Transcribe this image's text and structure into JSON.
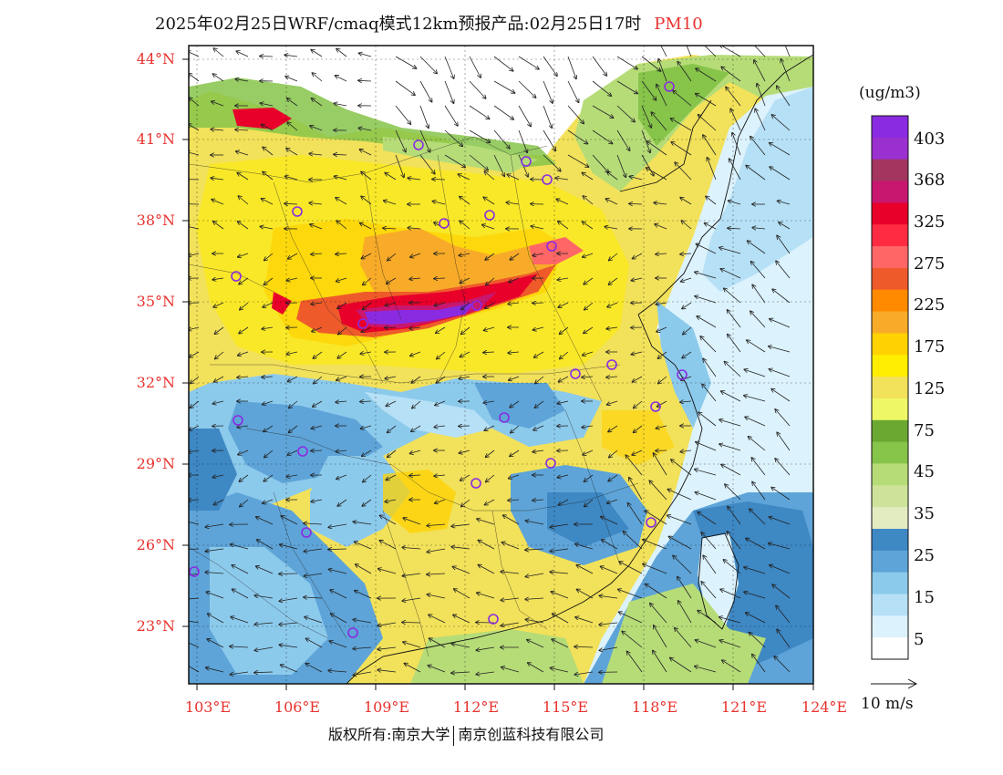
{
  "title": {
    "text": "2025年02月25日WRF/cmaq模式12km预报产品:02月25日17时",
    "variable": "PM10"
  },
  "axes": {
    "y_ticks": [
      "44°N",
      "41°N",
      "38°N",
      "35°N",
      "32°N",
      "29°N",
      "26°N",
      "23°N"
    ],
    "x_ticks": [
      "103°E",
      "106°E",
      "109°E",
      "112°E",
      "115°E",
      "118°E",
      "121°E",
      "124°E"
    ]
  },
  "colorbar": {
    "unit": "(ug/m3)",
    "labels": [
      "403",
      "368",
      "325",
      "275",
      "225",
      "175",
      "125",
      "75",
      "45",
      "35",
      "25",
      "15",
      "5"
    ],
    "colors": [
      "#8a2be2",
      "#9b30d0",
      "#a3355f",
      "#c8176f",
      "#e8002a",
      "#ff2b43",
      "#ff6666",
      "#ef5a2a",
      "#ff8a00",
      "#f8ab28",
      "#ffd200",
      "#ffee00",
      "#f2e15a",
      "#eef765",
      "#6aa832",
      "#86c44a",
      "#b6dc78",
      "#cde39a",
      "#e2ecc0",
      "#3e88c4",
      "#5ea4d8",
      "#8ccaec",
      "#b6e0f6",
      "#dcf2fc",
      "#ffffff"
    ]
  },
  "wind_reference": {
    "label": "10 m/s"
  },
  "copyright": {
    "left": "版权所有:南京大学",
    "right": "南京创蓝科技有限公司"
  }
}
